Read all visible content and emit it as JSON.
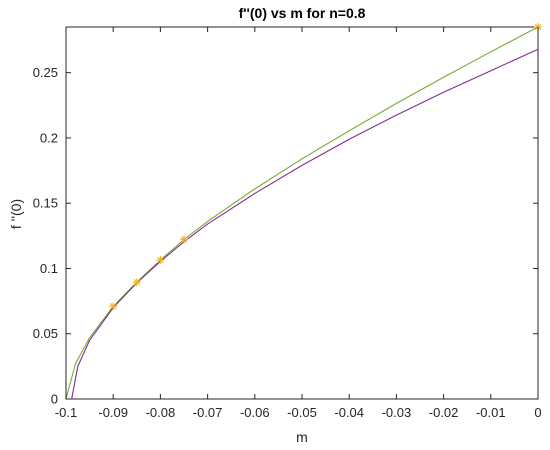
{
  "chart_data": {
    "type": "line",
    "title": "f''(0) vs m for n=0.8",
    "xlabel": "m",
    "ylabel": "f ''(0)",
    "xlim": [
      -0.1,
      0
    ],
    "ylim": [
      0,
      0.285
    ],
    "x_ticks": [
      -0.1,
      -0.09,
      -0.08,
      -0.07,
      -0.06,
      -0.05,
      -0.04,
      -0.03,
      -0.02,
      -0.01,
      0
    ],
    "x_tick_labels": [
      "-0.1",
      "-0.09",
      "-0.08",
      "-0.07",
      "-0.06",
      "-0.05",
      "-0.04",
      "-0.03",
      "-0.02",
      "-0.01",
      "0"
    ],
    "y_ticks": [
      0,
      0.05,
      0.1,
      0.15,
      0.2,
      0.25
    ],
    "y_tick_labels": [
      "0",
      "0.05",
      "0.1",
      "0.15",
      "0.2",
      "0.25"
    ],
    "grid": false,
    "series": [
      {
        "color": "#77ac30",
        "style": "line",
        "x": [
          -0.1,
          -0.098,
          -0.095,
          -0.09,
          -0.085,
          -0.08,
          -0.075,
          -0.07,
          -0.06,
          -0.05,
          -0.04,
          -0.03,
          -0.02,
          -0.01,
          0
        ],
        "y": [
          0.0,
          0.027,
          0.047,
          0.071,
          0.0895,
          0.1065,
          0.1222,
          0.136,
          0.161,
          0.184,
          0.2055,
          0.2265,
          0.2465,
          0.266,
          0.285
        ]
      },
      {
        "color": "#7e2f8e",
        "style": "line",
        "x": [
          -0.0988,
          -0.0975,
          -0.095,
          -0.09,
          -0.085,
          -0.08,
          -0.075,
          -0.07,
          -0.06,
          -0.05,
          -0.04,
          -0.03,
          -0.02,
          -0.01,
          0
        ],
        "y": [
          0.0,
          0.025,
          0.045,
          0.07,
          0.089,
          0.1055,
          0.1205,
          0.134,
          0.1575,
          0.179,
          0.199,
          0.2175,
          0.235,
          0.2515,
          0.268
        ]
      },
      {
        "color": "#edb120",
        "style": "markers",
        "marker": "asterisk",
        "x": [
          -0.09,
          -0.085,
          -0.08,
          -0.075,
          0
        ],
        "y": [
          0.071,
          0.0895,
          0.1065,
          0.1222,
          0.285
        ]
      }
    ]
  }
}
